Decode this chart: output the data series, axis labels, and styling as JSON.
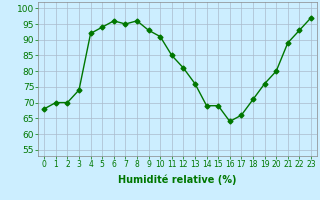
{
  "x": [
    0,
    1,
    2,
    3,
    4,
    5,
    6,
    7,
    8,
    9,
    10,
    11,
    12,
    13,
    14,
    15,
    16,
    17,
    18,
    19,
    20,
    21,
    22,
    23
  ],
  "y": [
    68,
    70,
    70,
    74,
    92,
    94,
    96,
    95,
    96,
    93,
    91,
    85,
    81,
    76,
    69,
    69,
    64,
    66,
    71,
    76,
    80,
    89,
    93,
    97
  ],
  "line_color": "#007700",
  "marker": "D",
  "marker_size": 2.5,
  "bg_color": "#cceeff",
  "grid_color": "#aabbcc",
  "xlabel": "Humidité relative (%)",
  "xlabel_color": "#007700",
  "xlabel_fontsize": 7,
  "ylabel_ticks": [
    55,
    60,
    65,
    70,
    75,
    80,
    85,
    90,
    95,
    100
  ],
  "ylim": [
    53,
    102
  ],
  "xlim": [
    -0.5,
    23.5
  ],
  "xtick_fontsize": 5.5,
  "ytick_fontsize": 6.5,
  "tick_color": "#007700"
}
